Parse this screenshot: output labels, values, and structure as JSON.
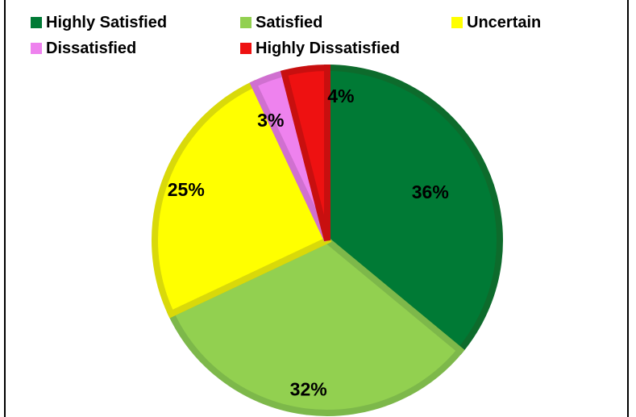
{
  "chart_data": {
    "type": "pie",
    "title": "",
    "legend_placement": "top",
    "categories": [
      "Highly Satisfied",
      "Satisfied",
      "Uncertain",
      "Dissatisfied",
      "Highly Dissatisfied"
    ],
    "values": [
      36,
      32,
      25,
      3,
      4
    ],
    "labels": [
      "36%",
      "32%",
      "25%",
      "3%",
      "4%"
    ],
    "colors": [
      "#007a35",
      "#92d050",
      "#ffff00",
      "#ee82ee",
      "#ee1111"
    ],
    "edge_colors": [
      "#0d6b2c",
      "#7db84a",
      "#d9d90a",
      "#d070d0",
      "#c80f0f"
    ]
  }
}
